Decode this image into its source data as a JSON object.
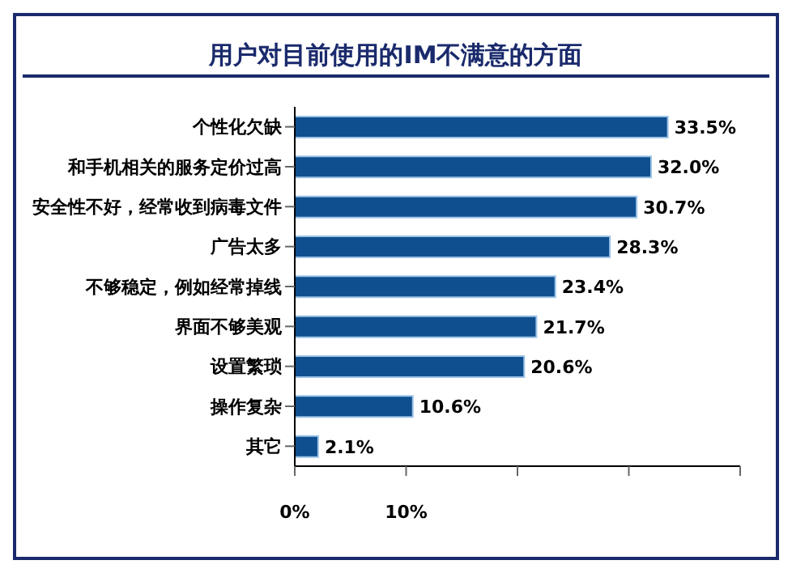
{
  "chart_data": {
    "type": "bar",
    "orientation": "horizontal",
    "title": "用户对目前使用的IM不满意的方面",
    "categories": [
      "个性化欠缺",
      "和手机相关的服务定价过高",
      "安全性不好，经常收到病毒文件",
      "广告太多",
      "不够稳定，例如经常掉线",
      "界面不够美观",
      "设置繁琐",
      "操作复杂",
      "其它"
    ],
    "values": [
      33.5,
      32.0,
      30.7,
      28.3,
      23.4,
      21.7,
      20.6,
      10.6,
      2.1
    ],
    "value_labels": [
      "33.5%",
      "32.0%",
      "30.7%",
      "28.3%",
      "23.4%",
      "21.7%",
      "20.6%",
      "10.6%",
      "2.1%"
    ],
    "color": "#0f4f8f",
    "xlim": [
      0,
      40
    ],
    "xticks": [
      {
        "value": 0,
        "label": "0%"
      },
      {
        "value": 10,
        "label": "10%"
      },
      {
        "value": 20,
        "label": null
      },
      {
        "value": 30,
        "label": null
      },
      {
        "value": 40,
        "label": null
      }
    ]
  }
}
